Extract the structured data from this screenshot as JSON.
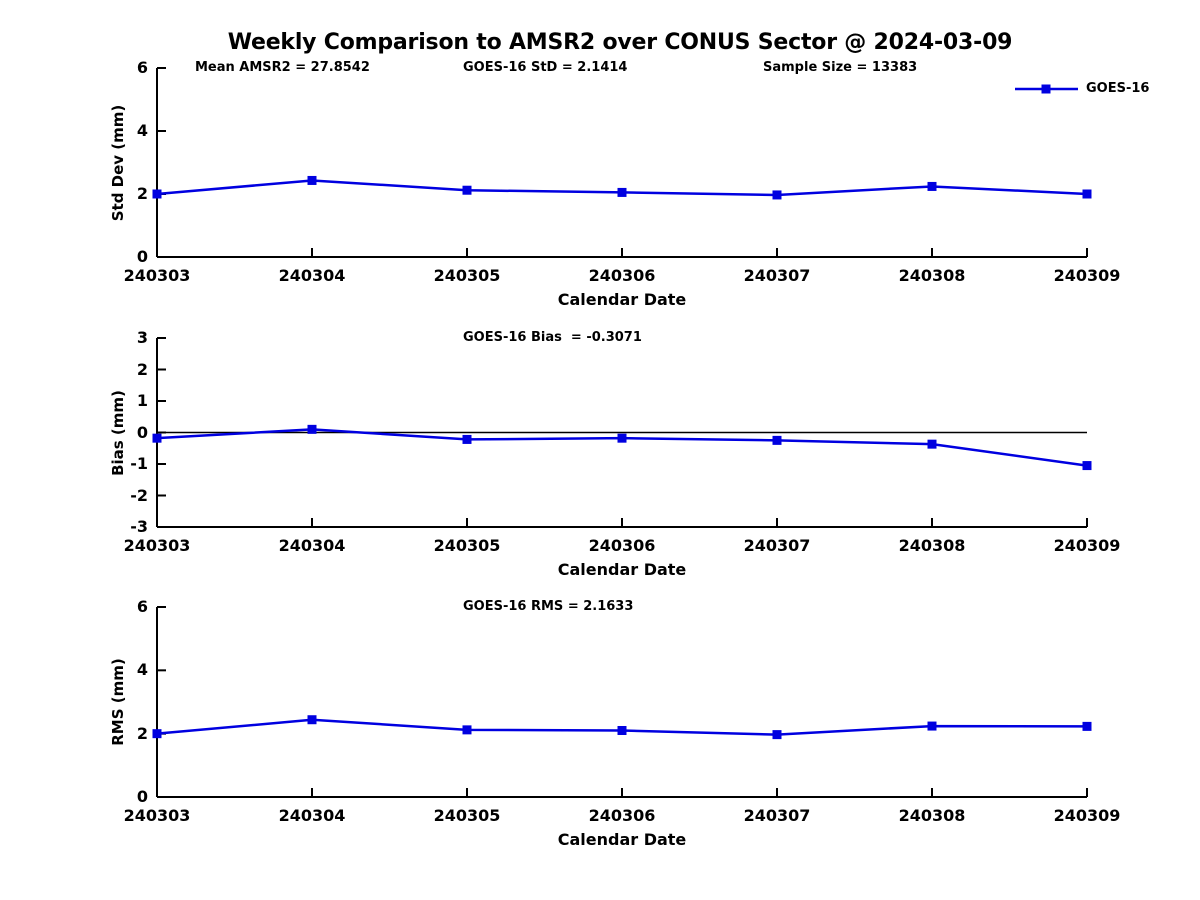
{
  "title": "Weekly Comparison to AMSR2 over CONUS Sector @ 2024-03-09",
  "legend": {
    "label": "GOES-16",
    "color": "#0000e0"
  },
  "chart_data": [
    {
      "type": "line",
      "name": "std-dev",
      "ylabel": "Std Dev (mm)",
      "xlabel": "Calendar Date",
      "ylim": [
        0,
        6
      ],
      "yticks": [
        0,
        2,
        4,
        6
      ],
      "categories": [
        "240303",
        "240304",
        "240305",
        "240306",
        "240307",
        "240308",
        "240309"
      ],
      "annotations": [
        "Mean AMSR2 = 27.8542",
        "GOES-16 StD = 2.1414",
        "Sample Size = 13383"
      ],
      "grid": false,
      "legend_position": "top-right",
      "series": [
        {
          "name": "GOES-16",
          "color": "#0000e0",
          "marker": "square",
          "values": [
            2.0,
            2.43,
            2.12,
            2.05,
            1.97,
            2.24,
            2.0
          ]
        }
      ]
    },
    {
      "type": "line",
      "name": "bias",
      "ylabel": "Bias (mm)",
      "xlabel": "Calendar Date",
      "ylim": [
        -3,
        3
      ],
      "yticks": [
        -3,
        -2,
        -1,
        0,
        1,
        2,
        3
      ],
      "zero_line": true,
      "categories": [
        "240303",
        "240304",
        "240305",
        "240306",
        "240307",
        "240308",
        "240309"
      ],
      "annotations": [
        "GOES-16 Bias  = -0.3071"
      ],
      "grid": false,
      "series": [
        {
          "name": "GOES-16",
          "color": "#0000e0",
          "marker": "square",
          "values": [
            -0.18,
            0.1,
            -0.22,
            -0.18,
            -0.25,
            -0.37,
            -1.05
          ]
        }
      ]
    },
    {
      "type": "line",
      "name": "rms",
      "ylabel": "RMS (mm)",
      "xlabel": "Calendar Date",
      "ylim": [
        0,
        6
      ],
      "yticks": [
        0,
        2,
        4,
        6
      ],
      "categories": [
        "240303",
        "240304",
        "240305",
        "240306",
        "240307",
        "240308",
        "240309"
      ],
      "annotations": [
        "GOES-16 RMS = 2.1633"
      ],
      "grid": false,
      "series": [
        {
          "name": "GOES-16",
          "color": "#0000e0",
          "marker": "square",
          "values": [
            2.0,
            2.44,
            2.12,
            2.1,
            1.97,
            2.24,
            2.23
          ]
        }
      ]
    }
  ]
}
